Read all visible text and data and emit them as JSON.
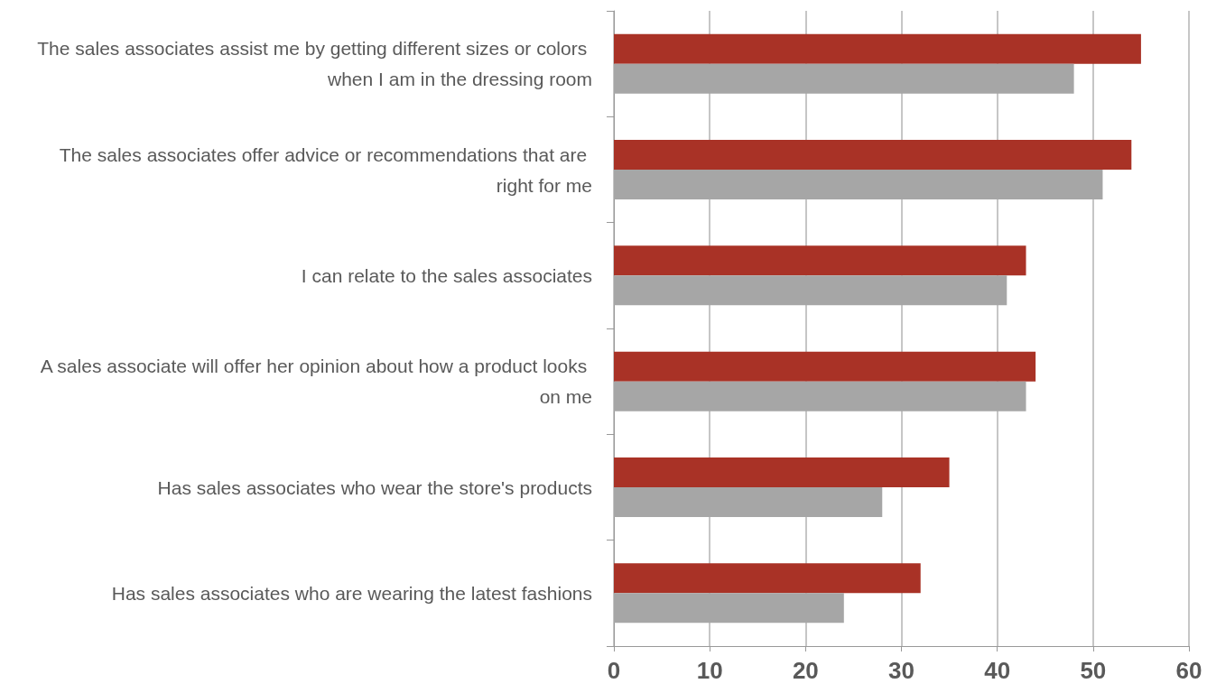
{
  "chart_data": {
    "type": "bar",
    "orientation": "horizontal",
    "categories": [
      "The sales associates assist me by getting different sizes or colors when I am in the dressing room",
      "The sales associates offer advice or recommendations that are right for me",
      "I can relate to the sales associates",
      "A sales associate will offer her opinion about how a product looks on me",
      "Has sales associates who wear the store's products",
      "Has sales associates who are wearing the latest fashions"
    ],
    "series": [
      {
        "color": "#a93226",
        "values": [
          55,
          54,
          43,
          44,
          35,
          32
        ]
      },
      {
        "color": "#a6a6a6",
        "values": [
          48,
          51,
          41,
          43,
          28,
          24
        ]
      }
    ],
    "xlim": [
      0,
      60
    ],
    "xticks": [
      0,
      10,
      20,
      30,
      40,
      50,
      60
    ],
    "grid": "x"
  }
}
